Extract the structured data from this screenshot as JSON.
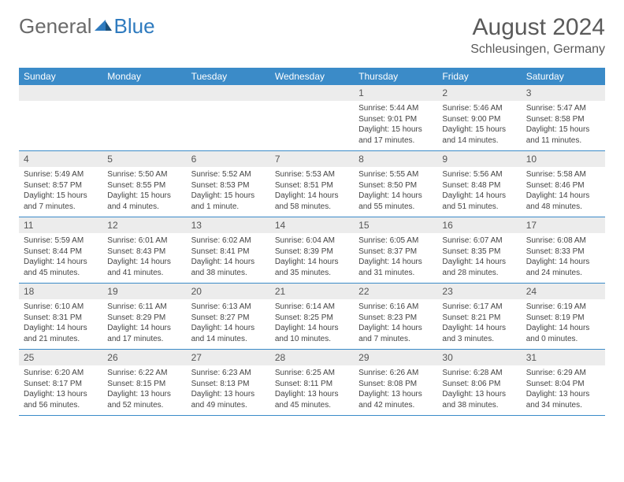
{
  "logo": {
    "general": "General",
    "blue": "Blue"
  },
  "title": "August 2024",
  "subtitle": "Schleusingen, Germany",
  "colors": {
    "header_bg": "#3b8bc8",
    "header_text": "#ffffff",
    "daynum_bg": "#ececec",
    "daynum_text": "#555555",
    "body_text": "#444444",
    "divider": "#3b8bc8",
    "title_text": "#5a5a5a",
    "logo_gray": "#6a6a6a",
    "logo_blue": "#2f7bbf"
  },
  "weekdays": [
    "Sunday",
    "Monday",
    "Tuesday",
    "Wednesday",
    "Thursday",
    "Friday",
    "Saturday"
  ],
  "weeks": [
    [
      null,
      null,
      null,
      null,
      {
        "n": "1",
        "sr": "Sunrise: 5:44 AM",
        "ss": "Sunset: 9:01 PM",
        "dl": "Daylight: 15 hours and 17 minutes."
      },
      {
        "n": "2",
        "sr": "Sunrise: 5:46 AM",
        "ss": "Sunset: 9:00 PM",
        "dl": "Daylight: 15 hours and 14 minutes."
      },
      {
        "n": "3",
        "sr": "Sunrise: 5:47 AM",
        "ss": "Sunset: 8:58 PM",
        "dl": "Daylight: 15 hours and 11 minutes."
      }
    ],
    [
      {
        "n": "4",
        "sr": "Sunrise: 5:49 AM",
        "ss": "Sunset: 8:57 PM",
        "dl": "Daylight: 15 hours and 7 minutes."
      },
      {
        "n": "5",
        "sr": "Sunrise: 5:50 AM",
        "ss": "Sunset: 8:55 PM",
        "dl": "Daylight: 15 hours and 4 minutes."
      },
      {
        "n": "6",
        "sr": "Sunrise: 5:52 AM",
        "ss": "Sunset: 8:53 PM",
        "dl": "Daylight: 15 hours and 1 minute."
      },
      {
        "n": "7",
        "sr": "Sunrise: 5:53 AM",
        "ss": "Sunset: 8:51 PM",
        "dl": "Daylight: 14 hours and 58 minutes."
      },
      {
        "n": "8",
        "sr": "Sunrise: 5:55 AM",
        "ss": "Sunset: 8:50 PM",
        "dl": "Daylight: 14 hours and 55 minutes."
      },
      {
        "n": "9",
        "sr": "Sunrise: 5:56 AM",
        "ss": "Sunset: 8:48 PM",
        "dl": "Daylight: 14 hours and 51 minutes."
      },
      {
        "n": "10",
        "sr": "Sunrise: 5:58 AM",
        "ss": "Sunset: 8:46 PM",
        "dl": "Daylight: 14 hours and 48 minutes."
      }
    ],
    [
      {
        "n": "11",
        "sr": "Sunrise: 5:59 AM",
        "ss": "Sunset: 8:44 PM",
        "dl": "Daylight: 14 hours and 45 minutes."
      },
      {
        "n": "12",
        "sr": "Sunrise: 6:01 AM",
        "ss": "Sunset: 8:43 PM",
        "dl": "Daylight: 14 hours and 41 minutes."
      },
      {
        "n": "13",
        "sr": "Sunrise: 6:02 AM",
        "ss": "Sunset: 8:41 PM",
        "dl": "Daylight: 14 hours and 38 minutes."
      },
      {
        "n": "14",
        "sr": "Sunrise: 6:04 AM",
        "ss": "Sunset: 8:39 PM",
        "dl": "Daylight: 14 hours and 35 minutes."
      },
      {
        "n": "15",
        "sr": "Sunrise: 6:05 AM",
        "ss": "Sunset: 8:37 PM",
        "dl": "Daylight: 14 hours and 31 minutes."
      },
      {
        "n": "16",
        "sr": "Sunrise: 6:07 AM",
        "ss": "Sunset: 8:35 PM",
        "dl": "Daylight: 14 hours and 28 minutes."
      },
      {
        "n": "17",
        "sr": "Sunrise: 6:08 AM",
        "ss": "Sunset: 8:33 PM",
        "dl": "Daylight: 14 hours and 24 minutes."
      }
    ],
    [
      {
        "n": "18",
        "sr": "Sunrise: 6:10 AM",
        "ss": "Sunset: 8:31 PM",
        "dl": "Daylight: 14 hours and 21 minutes."
      },
      {
        "n": "19",
        "sr": "Sunrise: 6:11 AM",
        "ss": "Sunset: 8:29 PM",
        "dl": "Daylight: 14 hours and 17 minutes."
      },
      {
        "n": "20",
        "sr": "Sunrise: 6:13 AM",
        "ss": "Sunset: 8:27 PM",
        "dl": "Daylight: 14 hours and 14 minutes."
      },
      {
        "n": "21",
        "sr": "Sunrise: 6:14 AM",
        "ss": "Sunset: 8:25 PM",
        "dl": "Daylight: 14 hours and 10 minutes."
      },
      {
        "n": "22",
        "sr": "Sunrise: 6:16 AM",
        "ss": "Sunset: 8:23 PM",
        "dl": "Daylight: 14 hours and 7 minutes."
      },
      {
        "n": "23",
        "sr": "Sunrise: 6:17 AM",
        "ss": "Sunset: 8:21 PM",
        "dl": "Daylight: 14 hours and 3 minutes."
      },
      {
        "n": "24",
        "sr": "Sunrise: 6:19 AM",
        "ss": "Sunset: 8:19 PM",
        "dl": "Daylight: 14 hours and 0 minutes."
      }
    ],
    [
      {
        "n": "25",
        "sr": "Sunrise: 6:20 AM",
        "ss": "Sunset: 8:17 PM",
        "dl": "Daylight: 13 hours and 56 minutes."
      },
      {
        "n": "26",
        "sr": "Sunrise: 6:22 AM",
        "ss": "Sunset: 8:15 PM",
        "dl": "Daylight: 13 hours and 52 minutes."
      },
      {
        "n": "27",
        "sr": "Sunrise: 6:23 AM",
        "ss": "Sunset: 8:13 PM",
        "dl": "Daylight: 13 hours and 49 minutes."
      },
      {
        "n": "28",
        "sr": "Sunrise: 6:25 AM",
        "ss": "Sunset: 8:11 PM",
        "dl": "Daylight: 13 hours and 45 minutes."
      },
      {
        "n": "29",
        "sr": "Sunrise: 6:26 AM",
        "ss": "Sunset: 8:08 PM",
        "dl": "Daylight: 13 hours and 42 minutes."
      },
      {
        "n": "30",
        "sr": "Sunrise: 6:28 AM",
        "ss": "Sunset: 8:06 PM",
        "dl": "Daylight: 13 hours and 38 minutes."
      },
      {
        "n": "31",
        "sr": "Sunrise: 6:29 AM",
        "ss": "Sunset: 8:04 PM",
        "dl": "Daylight: 13 hours and 34 minutes."
      }
    ]
  ]
}
